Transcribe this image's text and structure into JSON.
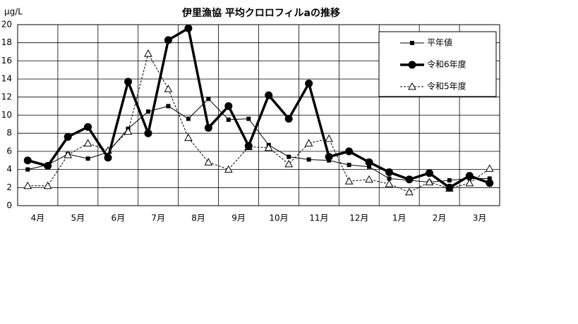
{
  "chart_data": {
    "type": "line",
    "title": "伊里漁協 平均クロロフィルaの推移",
    "y_label": "μg/L",
    "categories": [
      "4月",
      null,
      "5月",
      null,
      "6月",
      null,
      "7月",
      null,
      "8月",
      null,
      "9月",
      null,
      "10月",
      null,
      "11月",
      null,
      "12月",
      null,
      "1月",
      null,
      "2月",
      null,
      "3月",
      null
    ],
    "series": [
      {
        "name": "平年値",
        "color": "#000000",
        "values": [
          4.0,
          4.5,
          5.7,
          5.2,
          5.9,
          8.5,
          10.4,
          11.0,
          9.6,
          11.8,
          9.5,
          9.6,
          6.7,
          5.4,
          5.1,
          5.0,
          4.5,
          4.3,
          3.0,
          2.8,
          2.6,
          2.8,
          3.0,
          3.0
        ]
      },
      {
        "name": "令和6年度",
        "color": "#000000",
        "values": [
          5.0,
          4.4,
          7.6,
          8.7,
          5.3,
          13.7,
          8.0,
          18.3,
          19.6,
          8.6,
          11.0,
          6.6,
          12.2,
          9.6,
          13.5,
          5.4,
          6.0,
          4.8,
          3.7,
          2.9,
          3.6,
          2.0,
          3.3,
          2.5
        ]
      },
      {
        "name": "令和5年度",
        "color": "#000000",
        "values": [
          2.2,
          2.2,
          5.6,
          6.9,
          6.1,
          8.2,
          16.8,
          12.9,
          7.5,
          4.8,
          4.0,
          6.5,
          6.4,
          4.6,
          6.9,
          7.4,
          2.7,
          2.9,
          2.4,
          1.5,
          2.6,
          1.9,
          2.5,
          4.1
        ]
      }
    ],
    "ylim": [
      0,
      20
    ],
    "yticks": [
      0,
      2,
      4,
      6,
      8,
      10,
      12,
      14,
      16,
      18,
      20
    ],
    "grid": true,
    "legend": "upper right"
  }
}
